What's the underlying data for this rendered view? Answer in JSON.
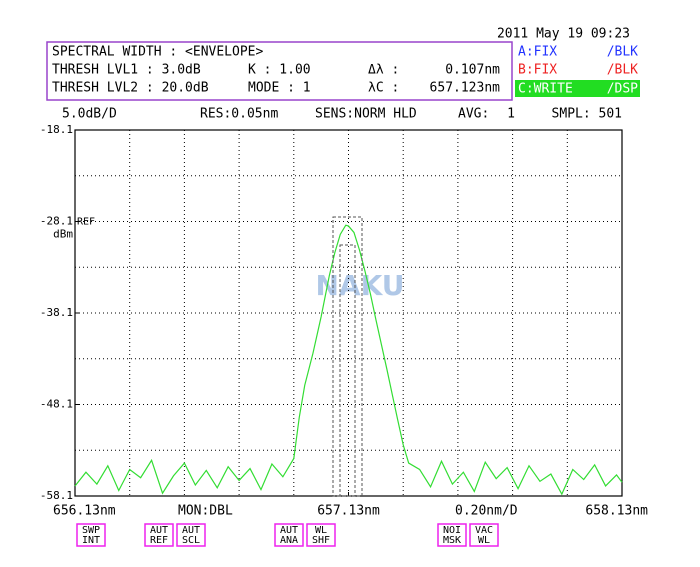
{
  "header": {
    "datetime": "2011 May 19 09:23",
    "rows": [
      [
        "SPECTRAL WIDTH : <ENVELOPE>"
      ],
      [
        "THRESH LVL1 :  3.0dB",
        "K :  1.00",
        "Δλ :",
        "0.107nm"
      ],
      [
        "THRESH LVL2 : 20.0dB",
        "MODE :   1",
        "λC :",
        "657.123nm"
      ]
    ],
    "traces": [
      [
        "A:FIX",
        "/BLK"
      ],
      [
        "B:FIX",
        "/BLK"
      ],
      [
        "C:WRITE",
        "/DSP"
      ]
    ],
    "settings": [
      "5.0dB/D",
      "RES:0.05nm",
      "SENS:NORM HLD",
      "AVG:",
      "1",
      "SMPL: 501"
    ]
  },
  "footer": {
    "mon": "MON:DBL",
    "span": "0.20nm/D",
    "buttons": [
      [
        "SWP",
        "INT"
      ],
      [
        "AUT",
        "REF"
      ],
      [
        "AUT",
        "SCL"
      ],
      [
        "AUT",
        "ANA"
      ],
      [
        "WL",
        "SHF"
      ],
      [
        "NOI",
        "MSK"
      ],
      [
        "VAC",
        "WL"
      ]
    ],
    "watermark": "NAKU"
  },
  "chart_data": {
    "type": "line",
    "ref_label": "REF",
    "y_unit": "dBm",
    "x": [
      656.13,
      656.17,
      656.21,
      656.25,
      656.29,
      656.33,
      656.37,
      656.41,
      656.45,
      656.49,
      656.53,
      656.57,
      656.61,
      656.65,
      656.69,
      656.73,
      656.77,
      656.81,
      656.85,
      656.89,
      656.93,
      656.95,
      656.97,
      657.0,
      657.03,
      657.06,
      657.08,
      657.1,
      657.12,
      657.13,
      657.15,
      657.17,
      657.19,
      657.21,
      657.23,
      657.25,
      657.27,
      657.29,
      657.31,
      657.33,
      657.35,
      657.39,
      657.43,
      657.47,
      657.51,
      657.55,
      657.59,
      657.63,
      657.67,
      657.71,
      657.75,
      657.79,
      657.83,
      657.87,
      657.91,
      657.95,
      657.99,
      658.03,
      658.07,
      658.11,
      658.13
    ],
    "series": [
      {
        "color": "#33dd33",
        "values": [
          -57.0,
          -55.5,
          -56.8,
          -54.8,
          -57.5,
          -55.2,
          -56.1,
          -54.2,
          -57.8,
          -55.9,
          -54.5,
          -56.9,
          -55.3,
          -57.2,
          -54.9,
          -56.4,
          -55.1,
          -57.4,
          -54.6,
          -56.0,
          -54.0,
          -49.5,
          -46.0,
          -42.5,
          -38.5,
          -34.0,
          -31.5,
          -29.5,
          -28.5,
          -28.6,
          -29.3,
          -31.2,
          -33.5,
          -36.0,
          -38.8,
          -41.5,
          -44.2,
          -47.0,
          -49.8,
          -52.5,
          -54.5,
          -55.2,
          -57.1,
          -54.3,
          -56.8,
          -55.5,
          -57.6,
          -54.4,
          -56.2,
          -55.0,
          -57.3,
          -54.8,
          -56.5,
          -55.7,
          -57.9,
          -55.2,
          -56.3,
          -54.7,
          -57.0,
          -55.8,
          -56.6
        ]
      }
    ],
    "xlim": [
      656.13,
      658.13
    ],
    "ylim": [
      -58.1,
      -18.1
    ],
    "xticks": [
      {
        "value": 656.13,
        "label": "656.13nm"
      },
      {
        "value": 657.13,
        "label": "657.13nm"
      },
      {
        "value": 658.13,
        "label": "658.13nm"
      }
    ],
    "yticks": [
      -58.1,
      -48.1,
      -38.1,
      -28.1,
      -18.1
    ],
    "xgrid": [
      656.33,
      656.53,
      656.73,
      656.93,
      657.13,
      657.33,
      657.53,
      657.73,
      657.93
    ],
    "ygrid": [
      -53.1,
      -48.1,
      -43.1,
      -38.1,
      -33.1,
      -28.1,
      -23.1
    ],
    "grid": true
  }
}
